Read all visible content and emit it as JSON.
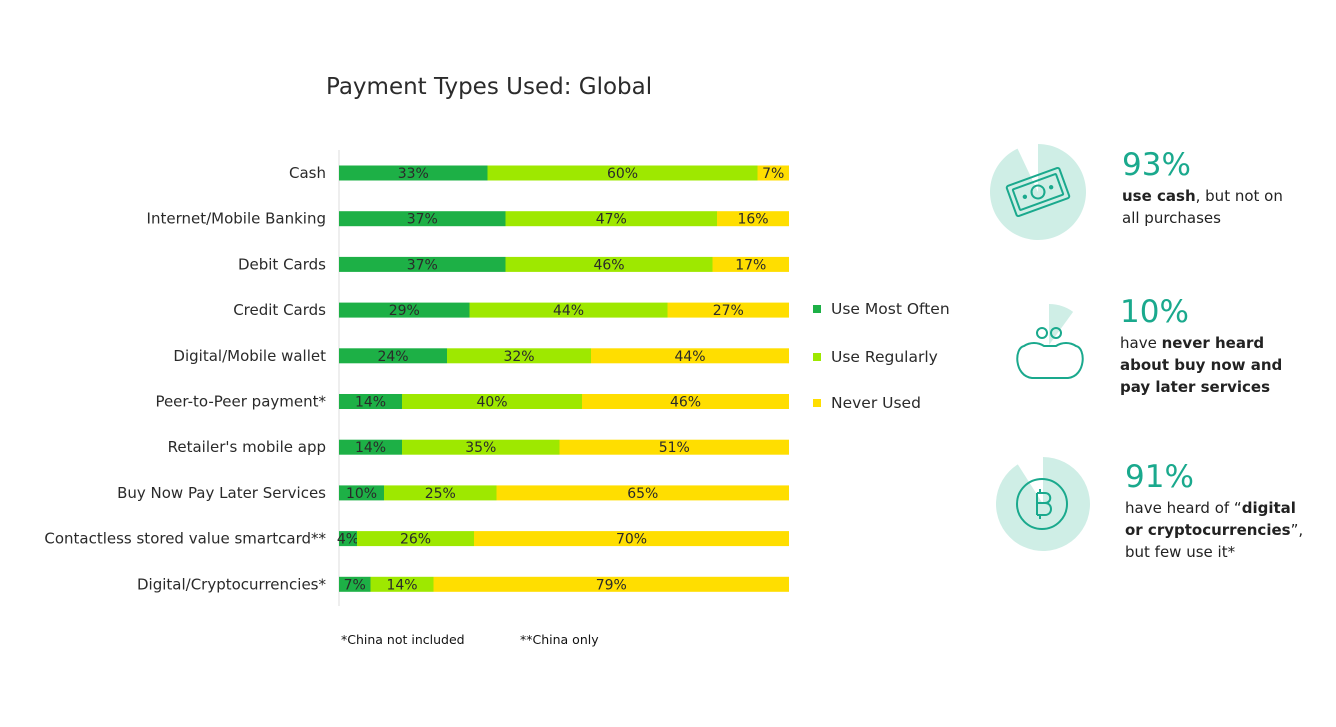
{
  "title": "Payment Types Used: Global",
  "chart_data": {
    "type": "bar",
    "orientation": "horizontal",
    "stacked": true,
    "categories": [
      "Cash",
      "Internet/Mobile Banking",
      "Debit Cards",
      "Credit Cards",
      "Digital/Mobile wallet",
      "Peer-to-Peer payment*",
      "Retailer's mobile app",
      "Buy Now Pay Later Services",
      "Contactless stored value smartcard**",
      "Digital/Cryptocurrencies*"
    ],
    "series": [
      {
        "name": "Use Most Often",
        "color": "#1db046",
        "values": [
          33,
          37,
          37,
          29,
          24,
          14,
          14,
          10,
          4,
          7
        ]
      },
      {
        "name": "Use Regularly",
        "color": "#9ee800",
        "values": [
          60,
          47,
          46,
          44,
          32,
          40,
          35,
          25,
          26,
          14
        ]
      },
      {
        "name": "Never Used",
        "color": "#ffde00",
        "values": [
          7,
          16,
          17,
          27,
          44,
          46,
          51,
          65,
          70,
          79
        ]
      }
    ],
    "value_suffix": "%",
    "legend_position": "right",
    "grid": false
  },
  "legend": [
    {
      "label": "Use Most Often",
      "color": "#1db046"
    },
    {
      "label": "Use Regularly",
      "color": "#9ee800"
    },
    {
      "label": "Never Used",
      "color": "#ffde00"
    }
  ],
  "footnotes": {
    "china_excluded": "*China not included",
    "china_only": "**China only"
  },
  "stats": [
    {
      "icon": "cash-icon",
      "percent": "93%",
      "fill_fraction": 0.93,
      "parts": [
        {
          "text": "use cash",
          "bold": true
        },
        {
          "text": ", but not on\nall purchases",
          "bold": false
        }
      ]
    },
    {
      "icon": "wallet-icon",
      "percent": "10%",
      "fill_fraction": 0.1,
      "parts": [
        {
          "text": "have ",
          "bold": false
        },
        {
          "text": "never heard\nabout buy now and\npay later services",
          "bold": true
        }
      ]
    },
    {
      "icon": "bitcoin-icon",
      "percent": "91%",
      "fill_fraction": 0.91,
      "parts": [
        {
          "text": "have heard of “",
          "bold": false
        },
        {
          "text": "digital\nor cryptocurrencies",
          "bold": true
        },
        {
          "text": "”,\nbut few use it*",
          "bold": false
        }
      ]
    }
  ],
  "colors": {
    "accent": "#1aa98d",
    "icon_fill": "#cfeee6"
  }
}
